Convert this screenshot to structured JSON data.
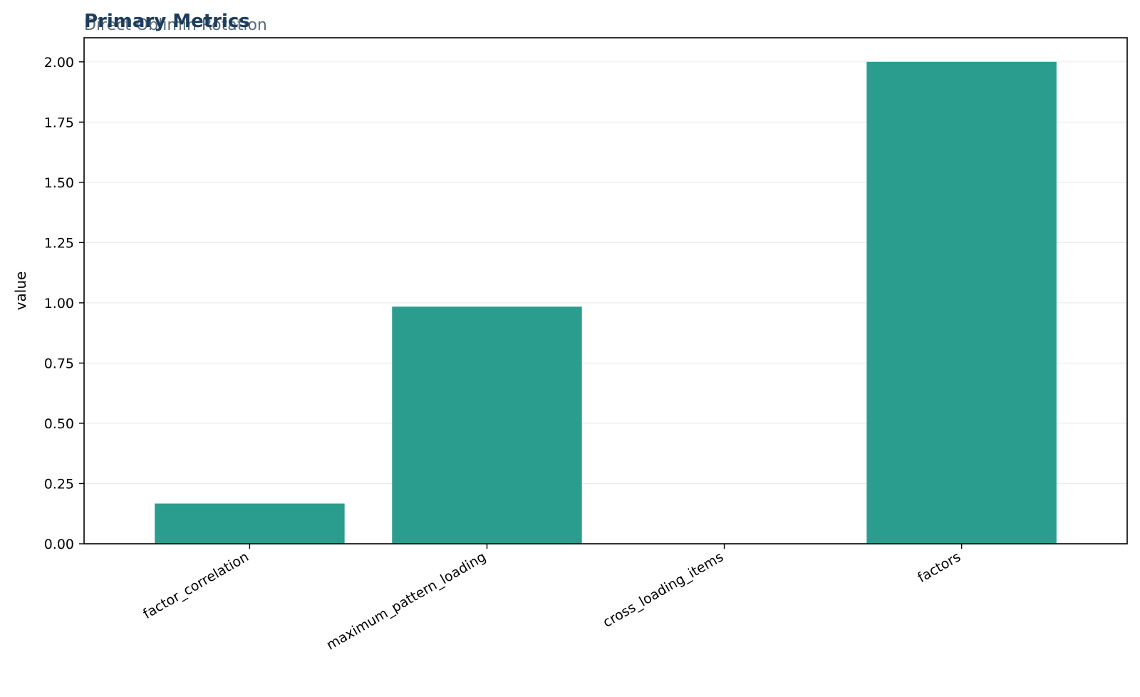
{
  "chart_data": {
    "type": "bar",
    "title": "Primary Metrics",
    "subtitle": "Direct Oblimin Rotation",
    "xlabel": "",
    "ylabel": "value",
    "categories": [
      "factor_correlation",
      "maximum_pattern_loading",
      "cross_loading_items",
      "factors"
    ],
    "values": [
      0.167,
      0.984,
      0.0,
      2.0
    ],
    "ylim": [
      0,
      2.1
    ],
    "yticks": [
      0.0,
      0.25,
      0.5,
      0.75,
      1.0,
      1.25,
      1.5,
      1.75,
      2.0
    ],
    "ytick_labels": [
      "0.00",
      "0.25",
      "0.50",
      "0.75",
      "1.00",
      "1.25",
      "1.50",
      "1.75",
      "2.00"
    ],
    "grid": "horizontal",
    "colors": {
      "bar": "#2a9d8f",
      "title": "#1d3d5c",
      "subtitle": "#5a6b7a",
      "grid": "#ebebeb"
    }
  }
}
